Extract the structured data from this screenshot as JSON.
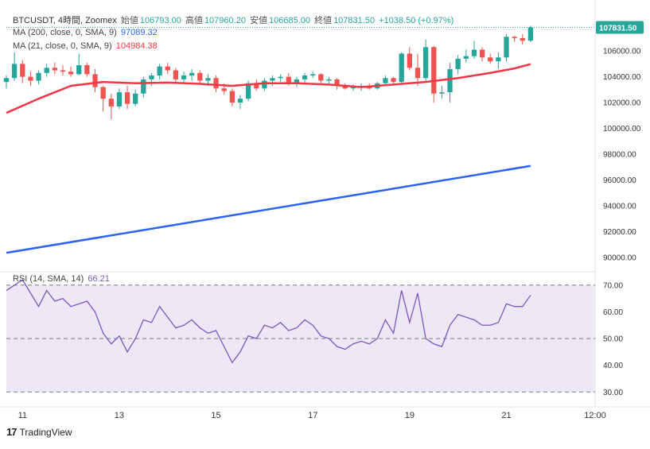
{
  "colors": {
    "up": "#26a69a",
    "down": "#ef5350",
    "ma200": "#2962ff",
    "ma21": "#f23645",
    "rsi_line": "#7e57c2",
    "rsi_band": "#ede7f6",
    "axis_text": "#333333",
    "last_price_tag": "#26a69a"
  },
  "header": {
    "symbol": "BTCUSDT, 4時間, Zoomex",
    "open_label": "始値",
    "open_value": "106793.00",
    "high_label": "高値",
    "high_value": "107960.20",
    "low_label": "安値",
    "low_value": "106685.00",
    "close_label": "終値",
    "close_value": "107831.50",
    "change": "+1038.50 (+0.97%)"
  },
  "indicators": {
    "ma200": {
      "label": "MA (200, close, 0, SMA, 9)",
      "value": "97089.32"
    },
    "ma21": {
      "label": "MA (21, close, 0, SMA, 9)",
      "value": "104984.38"
    },
    "rsi": {
      "label": "RSI (14, SMA, 14)",
      "value": "66.21"
    }
  },
  "footer": {
    "brand": "TradingView",
    "logo": "17"
  },
  "chart_data": [
    {
      "type": "candlestick",
      "title": "BTCUSDT, 4時間, Zoomex",
      "ylim": [
        89000,
        108600
      ],
      "y_ticks": [
        90000,
        92000,
        94000,
        96000,
        98000,
        100000,
        102000,
        104000,
        106000
      ],
      "y_tick_labels": [
        "90000.00",
        "92000.00",
        "94000.00",
        "96000.00",
        "98000.00",
        "100000.00",
        "102000.00",
        "104000.00",
        "106000.00"
      ],
      "x_range": [
        0,
        73
      ],
      "x_ticks": [
        {
          "x": 2,
          "label": "11"
        },
        {
          "x": 14,
          "label": "13"
        },
        {
          "x": 26,
          "label": "15"
        },
        {
          "x": 38,
          "label": "17"
        },
        {
          "x": 50,
          "label": "19"
        },
        {
          "x": 62,
          "label": "21"
        },
        {
          "x": 73,
          "label": "12:00"
        }
      ],
      "last_price": {
        "value": 107831.5,
        "label": "107831.50"
      },
      "candles": [
        {
          "o": 103600,
          "h": 104100,
          "l": 103100,
          "c": 103900
        },
        {
          "o": 103900,
          "h": 105900,
          "l": 103700,
          "c": 105000
        },
        {
          "o": 105000,
          "h": 105300,
          "l": 103500,
          "c": 104000
        },
        {
          "o": 104000,
          "h": 104400,
          "l": 103300,
          "c": 103700
        },
        {
          "o": 103700,
          "h": 104500,
          "l": 103400,
          "c": 104300
        },
        {
          "o": 104300,
          "h": 105000,
          "l": 104000,
          "c": 104700
        },
        {
          "o": 104700,
          "h": 105100,
          "l": 104200,
          "c": 104500
        },
        {
          "o": 104500,
          "h": 104900,
          "l": 104100,
          "c": 104400
        },
        {
          "o": 104400,
          "h": 104800,
          "l": 104000,
          "c": 104200
        },
        {
          "o": 104200,
          "h": 105800,
          "l": 104100,
          "c": 104900
        },
        {
          "o": 104900,
          "h": 105100,
          "l": 104000,
          "c": 104200
        },
        {
          "o": 104200,
          "h": 104600,
          "l": 102800,
          "c": 103200
        },
        {
          "o": 103200,
          "h": 103300,
          "l": 101300,
          "c": 102300
        },
        {
          "o": 102300,
          "h": 102700,
          "l": 100700,
          "c": 101700
        },
        {
          "o": 101700,
          "h": 103100,
          "l": 101500,
          "c": 102800
        },
        {
          "o": 102800,
          "h": 103300,
          "l": 101500,
          "c": 101900
        },
        {
          "o": 101900,
          "h": 103000,
          "l": 101700,
          "c": 102700
        },
        {
          "o": 102700,
          "h": 104000,
          "l": 102400,
          "c": 103800
        },
        {
          "o": 103800,
          "h": 104300,
          "l": 103300,
          "c": 104100
        },
        {
          "o": 104100,
          "h": 105000,
          "l": 103800,
          "c": 104800
        },
        {
          "o": 104800,
          "h": 105100,
          "l": 104200,
          "c": 104500
        },
        {
          "o": 104500,
          "h": 104700,
          "l": 103600,
          "c": 103800
        },
        {
          "o": 103800,
          "h": 104400,
          "l": 103500,
          "c": 104100
        },
        {
          "o": 104100,
          "h": 104600,
          "l": 103700,
          "c": 104300
        },
        {
          "o": 104300,
          "h": 104500,
          "l": 103500,
          "c": 103700
        },
        {
          "o": 103700,
          "h": 104200,
          "l": 103300,
          "c": 103900
        },
        {
          "o": 103900,
          "h": 104100,
          "l": 102800,
          "c": 103100
        },
        {
          "o": 103100,
          "h": 103500,
          "l": 102600,
          "c": 102900
        },
        {
          "o": 102900,
          "h": 103100,
          "l": 101700,
          "c": 102000
        },
        {
          "o": 102000,
          "h": 102600,
          "l": 101500,
          "c": 102300
        },
        {
          "o": 102300,
          "h": 103700,
          "l": 102100,
          "c": 103500
        },
        {
          "o": 103500,
          "h": 103800,
          "l": 102900,
          "c": 103100
        },
        {
          "o": 103100,
          "h": 103900,
          "l": 102900,
          "c": 103700
        },
        {
          "o": 103700,
          "h": 104100,
          "l": 103300,
          "c": 103900
        },
        {
          "o": 103900,
          "h": 104200,
          "l": 103600,
          "c": 104000
        },
        {
          "o": 104000,
          "h": 104300,
          "l": 103300,
          "c": 103500
        },
        {
          "o": 103500,
          "h": 104000,
          "l": 103200,
          "c": 103800
        },
        {
          "o": 103800,
          "h": 104300,
          "l": 103500,
          "c": 104100
        },
        {
          "o": 104100,
          "h": 104400,
          "l": 103900,
          "c": 104200
        },
        {
          "o": 104200,
          "h": 104300,
          "l": 103500,
          "c": 103700
        },
        {
          "o": 103700,
          "h": 104000,
          "l": 103500,
          "c": 103800
        },
        {
          "o": 103800,
          "h": 103900,
          "l": 103000,
          "c": 103300
        },
        {
          "o": 103300,
          "h": 103500,
          "l": 103000,
          "c": 103100
        },
        {
          "o": 103100,
          "h": 103400,
          "l": 102900,
          "c": 103200
        },
        {
          "o": 103200,
          "h": 103500,
          "l": 102900,
          "c": 103300
        },
        {
          "o": 103300,
          "h": 103500,
          "l": 103000,
          "c": 103100
        },
        {
          "o": 103100,
          "h": 103600,
          "l": 103000,
          "c": 103500
        },
        {
          "o": 103500,
          "h": 104100,
          "l": 103300,
          "c": 103900
        },
        {
          "o": 103900,
          "h": 104000,
          "l": 103400,
          "c": 103600
        },
        {
          "o": 103600,
          "h": 105900,
          "l": 103500,
          "c": 105800
        },
        {
          "o": 105800,
          "h": 106300,
          "l": 104500,
          "c": 104700
        },
        {
          "o": 104700,
          "h": 105800,
          "l": 103300,
          "c": 103900
        },
        {
          "o": 103900,
          "h": 106900,
          "l": 103600,
          "c": 106300
        },
        {
          "o": 106300,
          "h": 106400,
          "l": 102000,
          "c": 102700
        },
        {
          "o": 102700,
          "h": 103300,
          "l": 102300,
          "c": 102800
        },
        {
          "o": 102800,
          "h": 105100,
          "l": 102000,
          "c": 104600
        },
        {
          "o": 104600,
          "h": 105700,
          "l": 104200,
          "c": 105400
        },
        {
          "o": 105400,
          "h": 106100,
          "l": 105100,
          "c": 105600
        },
        {
          "o": 105600,
          "h": 106800,
          "l": 105400,
          "c": 106100
        },
        {
          "o": 106100,
          "h": 106300,
          "l": 105200,
          "c": 105500
        },
        {
          "o": 105500,
          "h": 105800,
          "l": 105000,
          "c": 105200
        },
        {
          "o": 105200,
          "h": 105900,
          "l": 104600,
          "c": 105500
        },
        {
          "o": 105500,
          "h": 107300,
          "l": 105200,
          "c": 107100
        },
        {
          "o": 107100,
          "h": 107200,
          "l": 106700,
          "c": 107000
        },
        {
          "o": 107000,
          "h": 107300,
          "l": 106500,
          "c": 106800
        },
        {
          "o": 106800,
          "h": 107960.2,
          "l": 106685,
          "c": 107831.5
        }
      ],
      "ma200": [
        {
          "x": 0,
          "y": 90350
        },
        {
          "x": 65,
          "y": 97089
        }
      ],
      "ma21": [
        {
          "x": 0,
          "y": 101200
        },
        {
          "x": 4,
          "y": 102300
        },
        {
          "x": 8,
          "y": 103300
        },
        {
          "x": 12,
          "y": 103600
        },
        {
          "x": 16,
          "y": 103500
        },
        {
          "x": 20,
          "y": 103550
        },
        {
          "x": 24,
          "y": 103450
        },
        {
          "x": 28,
          "y": 103300
        },
        {
          "x": 32,
          "y": 103500
        },
        {
          "x": 36,
          "y": 103500
        },
        {
          "x": 40,
          "y": 103400
        },
        {
          "x": 44,
          "y": 103200
        },
        {
          "x": 48,
          "y": 103400
        },
        {
          "x": 52,
          "y": 103600
        },
        {
          "x": 56,
          "y": 103900
        },
        {
          "x": 60,
          "y": 104300
        },
        {
          "x": 63,
          "y": 104650
        },
        {
          "x": 65,
          "y": 104984
        }
      ]
    },
    {
      "type": "line",
      "title": "RSI (14, SMA, 14)",
      "ylim": [
        28,
        75
      ],
      "y_ticks": [
        30,
        40,
        50,
        60,
        70
      ],
      "y_tick_labels": [
        "30.00",
        "40.00",
        "50.00",
        "60.00",
        "70.00"
      ],
      "band": [
        30,
        70
      ],
      "dashed_levels": [
        70,
        50,
        30
      ],
      "x_range": [
        0,
        73
      ],
      "series": [
        {
          "values": [
            68,
            70,
            72,
            67,
            62,
            68,
            64,
            65,
            62,
            63,
            64,
            60,
            52,
            48,
            51,
            45,
            50,
            57,
            56,
            62,
            58,
            54,
            55,
            57,
            54,
            52,
            53,
            47,
            41,
            45,
            51,
            50,
            55,
            54,
            56,
            53,
            54,
            57,
            55,
            51,
            50,
            47,
            46,
            48,
            49,
            48,
            50,
            57,
            52,
            68,
            56,
            67,
            50,
            48,
            47,
            55,
            59,
            58,
            57,
            55,
            55,
            56,
            63,
            62,
            62,
            66.21
          ]
        }
      ]
    }
  ]
}
